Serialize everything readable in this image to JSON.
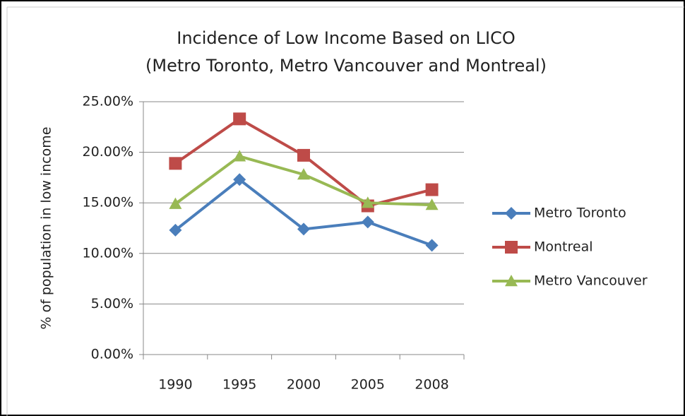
{
  "chart_data": {
    "type": "line",
    "title": [
      "Incidence of Low Income Based on LICO",
      "(Metro Toronto, Metro Vancouver and Montreal)"
    ],
    "y_label": "% of population in low income",
    "categories": [
      "1990",
      "1995",
      "2000",
      "2005",
      "2008"
    ],
    "series": [
      {
        "name": "Metro Toronto",
        "color": "#4a7ebb",
        "marker": "diamond",
        "values": [
          12.3,
          17.3,
          12.4,
          13.1,
          10.8
        ]
      },
      {
        "name": "Montreal",
        "color": "#be4b48",
        "marker": "square",
        "values": [
          18.9,
          23.3,
          19.7,
          14.7,
          16.3
        ]
      },
      {
        "name": "Metro Vancouver",
        "color": "#98b954",
        "marker": "triangle",
        "values": [
          14.9,
          19.6,
          17.8,
          15.0,
          14.8
        ]
      }
    ],
    "ylim": [
      0,
      25
    ],
    "yticks": [
      {
        "value": 0,
        "label": "0.00%"
      },
      {
        "value": 5,
        "label": "5.00%"
      },
      {
        "value": 10,
        "label": "10.00%"
      },
      {
        "value": 15,
        "label": "15.00%"
      },
      {
        "value": 20,
        "label": "20.00%"
      },
      {
        "value": 25,
        "label": "25.00%"
      }
    ],
    "grid": true,
    "legend": "right"
  }
}
